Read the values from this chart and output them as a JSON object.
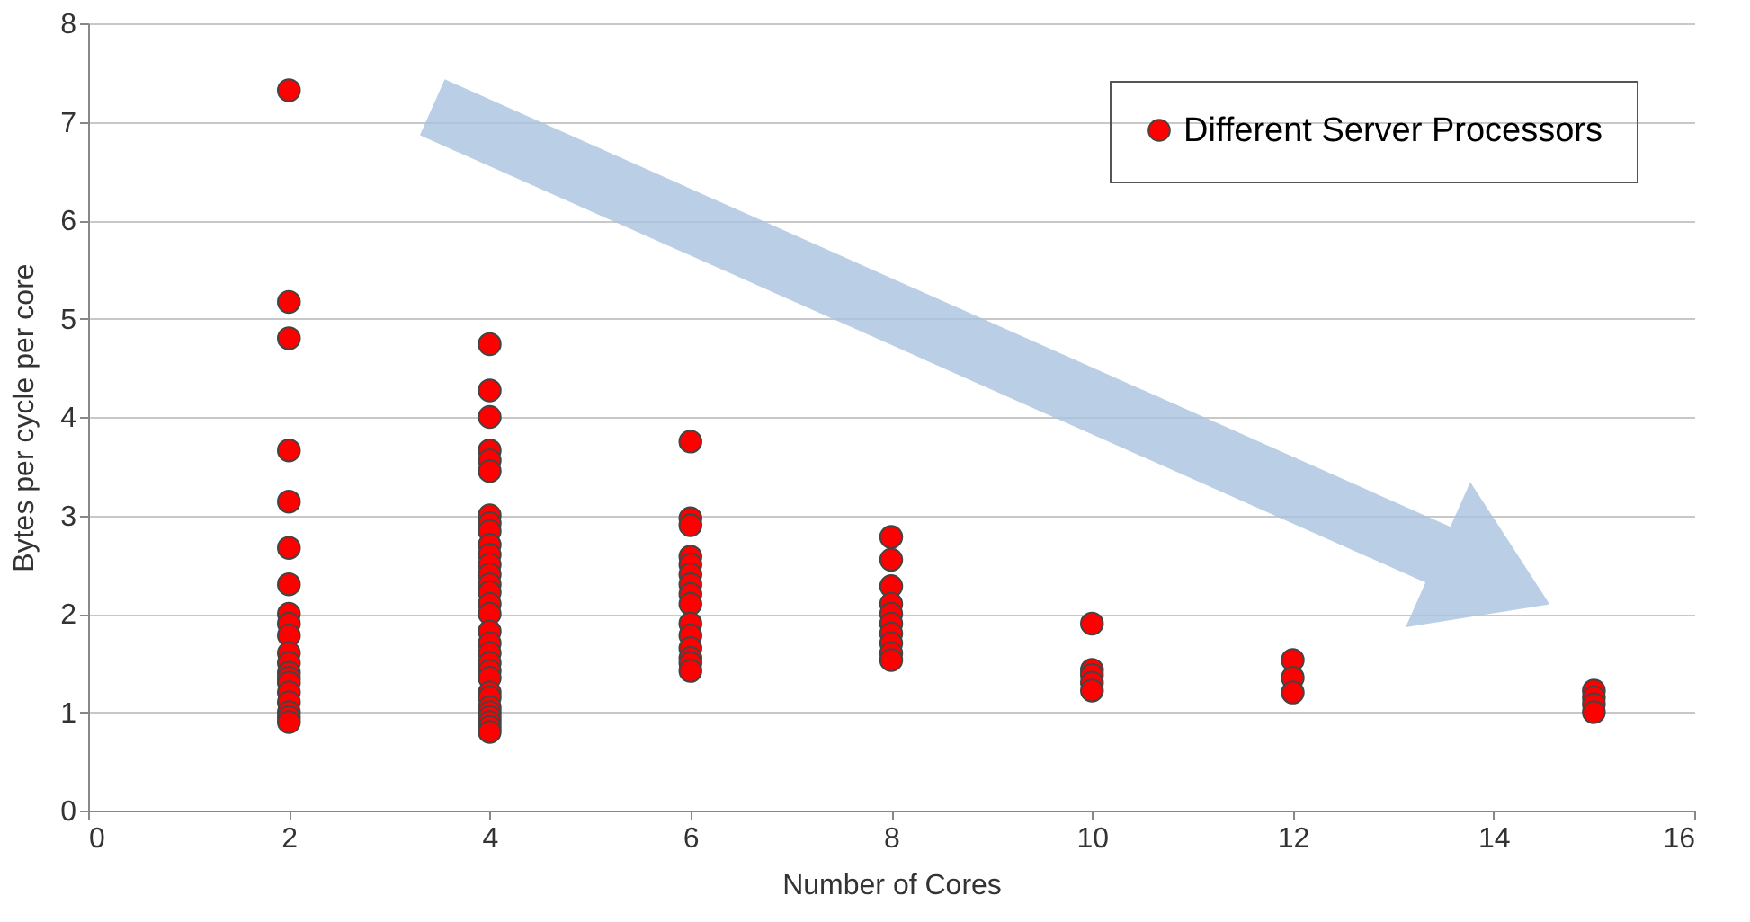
{
  "chart_data": {
    "type": "scatter",
    "xlabel": "Number of Cores",
    "ylabel": "Bytes per cycle per core",
    "series": [
      {
        "name": "Different Server Processors",
        "color": "#ff0000",
        "x": [
          2,
          2,
          2,
          2,
          2,
          2,
          2,
          2,
          2,
          2,
          2,
          2,
          2,
          2,
          2,
          2,
          2,
          2,
          2,
          2,
          4,
          4,
          4,
          4,
          4,
          4,
          4,
          4,
          4,
          4,
          4,
          4,
          4,
          4,
          4,
          4,
          4,
          4,
          4,
          4,
          4,
          4,
          4,
          4,
          4,
          4,
          4,
          4,
          4,
          4,
          4,
          6,
          6,
          6,
          6,
          6,
          6,
          6,
          6,
          6,
          6,
          6,
          6,
          6,
          6,
          6,
          8,
          8,
          8,
          8,
          8,
          8,
          8,
          8,
          8,
          8,
          10,
          10,
          10,
          10,
          10,
          12,
          12,
          12,
          15,
          15,
          15,
          15
        ],
        "values": [
          7.32,
          5.17,
          4.8,
          3.66,
          3.14,
          2.67,
          2.3,
          2.0,
          1.9,
          1.78,
          1.6,
          1.5,
          1.4,
          1.35,
          1.3,
          1.2,
          1.1,
          1.0,
          0.95,
          0.9,
          4.74,
          4.27,
          4.0,
          3.66,
          3.56,
          3.45,
          3.0,
          2.92,
          2.84,
          2.7,
          2.6,
          2.5,
          2.4,
          2.3,
          2.22,
          2.1,
          2.0,
          1.82,
          1.7,
          1.6,
          1.5,
          1.42,
          1.35,
          1.2,
          1.15,
          1.05,
          1.0,
          0.95,
          0.9,
          0.85,
          0.8,
          3.75,
          2.97,
          2.9,
          2.58,
          2.5,
          2.4,
          2.3,
          2.2,
          2.1,
          1.9,
          1.78,
          1.65,
          1.55,
          1.5,
          1.42,
          2.78,
          2.55,
          2.28,
          2.1,
          2.0,
          1.9,
          1.8,
          1.7,
          1.6,
          1.53,
          1.9,
          1.43,
          1.38,
          1.3,
          1.22,
          1.53,
          1.35,
          1.2,
          1.22,
          1.15,
          1.08,
          1.0
        ]
      }
    ],
    "xlim": [
      0,
      16
    ],
    "xticks": [
      0,
      2,
      4,
      6,
      8,
      10,
      12,
      14,
      16
    ],
    "ylim": [
      0,
      8
    ],
    "yticks": [
      0,
      1,
      2,
      3,
      4,
      5,
      6,
      7,
      8
    ],
    "grid": "y",
    "legend": "top right",
    "marker": "circle"
  }
}
